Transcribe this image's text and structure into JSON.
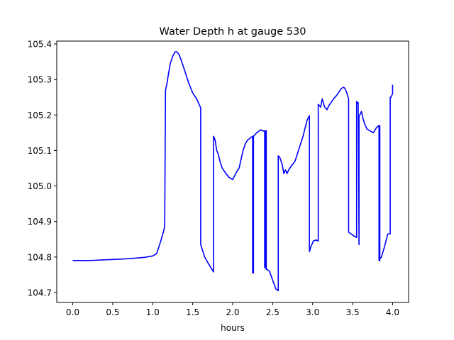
{
  "chart_data": {
    "type": "line",
    "title": "Water Depth h at gauge 530",
    "xlabel": "hours",
    "ylabel": "",
    "xlim": [
      -0.2,
      4.2
    ],
    "ylim": [
      104.672,
      105.408
    ],
    "xticks": [
      0.0,
      0.5,
      1.0,
      1.5,
      2.0,
      2.5,
      3.0,
      3.5,
      4.0
    ],
    "xtick_labels": [
      "0.0",
      "0.5",
      "1.0",
      "1.5",
      "2.0",
      "2.5",
      "3.0",
      "3.5",
      "4.0"
    ],
    "yticks": [
      104.7,
      104.8,
      104.9,
      105.0,
      105.1,
      105.2,
      105.3,
      105.4
    ],
    "ytick_labels": [
      "104.7",
      "104.8",
      "104.9",
      "105.0",
      "105.1",
      "105.2",
      "105.3",
      "105.4"
    ],
    "grid": false,
    "series": [
      {
        "color": "#0000ff",
        "x": [
          0.0,
          0.2,
          0.4,
          0.6,
          0.8,
          0.9,
          1.0,
          1.05,
          1.08,
          1.11,
          1.13,
          1.15,
          1.16,
          1.18,
          1.2,
          1.22,
          1.25,
          1.28,
          1.3,
          1.33,
          1.36,
          1.4,
          1.45,
          1.5,
          1.55,
          1.6,
          1.6,
          1.65,
          1.7,
          1.76,
          1.76,
          1.78,
          1.8,
          1.82,
          1.84,
          1.87,
          1.9,
          1.95,
          2.0,
          2.05,
          2.08,
          2.1,
          2.13,
          2.16,
          2.19,
          2.22,
          2.25,
          2.25,
          2.26,
          2.26,
          2.3,
          2.35,
          2.38,
          2.4,
          2.4,
          2.41,
          2.41,
          2.42,
          2.42,
          2.43,
          2.46,
          2.5,
          2.54,
          2.57,
          2.57,
          2.59,
          2.62,
          2.64,
          2.66,
          2.68,
          2.7,
          2.73,
          2.78,
          2.83,
          2.88,
          2.93,
          2.96,
          2.96,
          2.98,
          3.01,
          3.04,
          3.07,
          3.07,
          3.09,
          3.1,
          3.12,
          3.15,
          3.18,
          3.2,
          3.23,
          3.26,
          3.3,
          3.33,
          3.36,
          3.39,
          3.41,
          3.43,
          3.45,
          3.45,
          3.48,
          3.51,
          3.55,
          3.55,
          3.56,
          3.57,
          3.58,
          3.58,
          3.59,
          3.61,
          3.63,
          3.65,
          3.68,
          3.72,
          3.76,
          3.8,
          3.83,
          3.83,
          3.84,
          3.84,
          3.84,
          3.86,
          3.9,
          3.94,
          3.97,
          3.97,
          3.98,
          4.0,
          4.0
        ],
        "y": [
          104.79,
          104.79,
          104.792,
          104.794,
          104.797,
          104.799,
          104.803,
          104.81,
          104.83,
          104.852,
          104.868,
          104.885,
          105.27,
          105.29,
          105.32,
          105.345,
          105.365,
          105.378,
          105.378,
          105.37,
          105.352,
          105.325,
          105.29,
          105.262,
          105.245,
          105.22,
          104.835,
          104.8,
          104.78,
          104.758,
          105.14,
          105.13,
          105.1,
          105.09,
          105.07,
          105.05,
          105.04,
          105.025,
          105.018,
          105.04,
          105.05,
          105.07,
          105.1,
          105.12,
          105.13,
          105.135,
          105.14,
          104.755,
          104.755,
          105.14,
          105.15,
          105.158,
          105.155,
          105.155,
          104.77,
          104.77,
          105.155,
          105.155,
          104.765,
          104.765,
          104.76,
          104.735,
          104.71,
          104.705,
          105.085,
          105.08,
          105.06,
          105.035,
          105.045,
          105.035,
          105.045,
          105.055,
          105.07,
          105.105,
          105.14,
          105.185,
          105.198,
          104.815,
          104.83,
          104.845,
          104.848,
          104.845,
          105.23,
          105.225,
          105.222,
          105.245,
          105.222,
          105.215,
          105.225,
          105.235,
          105.245,
          105.255,
          105.265,
          105.275,
          105.278,
          105.272,
          105.26,
          105.245,
          104.87,
          104.865,
          104.86,
          104.855,
          105.238,
          105.232,
          105.235,
          104.835,
          105.195,
          105.2,
          105.21,
          105.19,
          105.175,
          105.16,
          105.155,
          105.15,
          105.165,
          105.17,
          104.79,
          104.79,
          105.17,
          104.795,
          104.8,
          104.83,
          104.865,
          104.865,
          105.25,
          105.25,
          105.26,
          105.285
        ]
      }
    ]
  }
}
